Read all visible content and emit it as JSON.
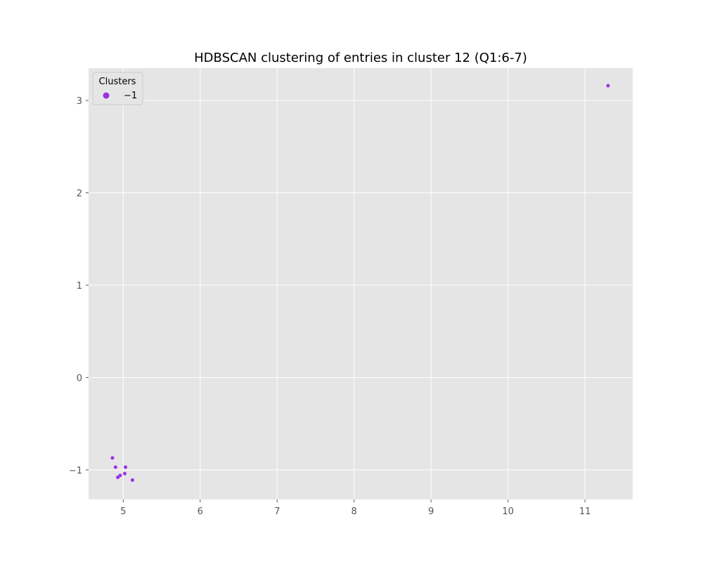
{
  "chart_data": {
    "type": "scatter",
    "title": "HDBSCAN clustering of entries in cluster 12 (Q1:6-7)",
    "xlabel": "",
    "ylabel": "",
    "xlim": [
      4.55,
      11.62
    ],
    "ylim": [
      -1.32,
      3.35
    ],
    "xticks": [
      5,
      6,
      7,
      8,
      9,
      10,
      11
    ],
    "yticks": [
      -1,
      0,
      1,
      2,
      3
    ],
    "xtick_labels": [
      "5",
      "6",
      "7",
      "8",
      "9",
      "10",
      "11"
    ],
    "ytick_labels": [
      "−1",
      "0",
      "1",
      "2",
      "3"
    ],
    "grid": true,
    "legend": {
      "title": "Clusters",
      "placement": "top-left",
      "entries": [
        {
          "label": "−1",
          "color": "#9b30e8"
        }
      ]
    },
    "series": [
      {
        "name": "−1",
        "color": "#9b30e8",
        "points": [
          {
            "x": 4.86,
            "y": -0.87
          },
          {
            "x": 4.9,
            "y": -0.97
          },
          {
            "x": 4.93,
            "y": -1.08
          },
          {
            "x": 4.96,
            "y": -1.06
          },
          {
            "x": 5.02,
            "y": -1.04
          },
          {
            "x": 5.03,
            "y": -0.97
          },
          {
            "x": 5.12,
            "y": -1.11
          },
          {
            "x": 11.3,
            "y": 3.16
          }
        ]
      }
    ]
  },
  "colors": {
    "plot_background": "#e5e5e5",
    "grid": "#ffffff",
    "tick_text": "#555555",
    "point": "#9b30e8"
  }
}
